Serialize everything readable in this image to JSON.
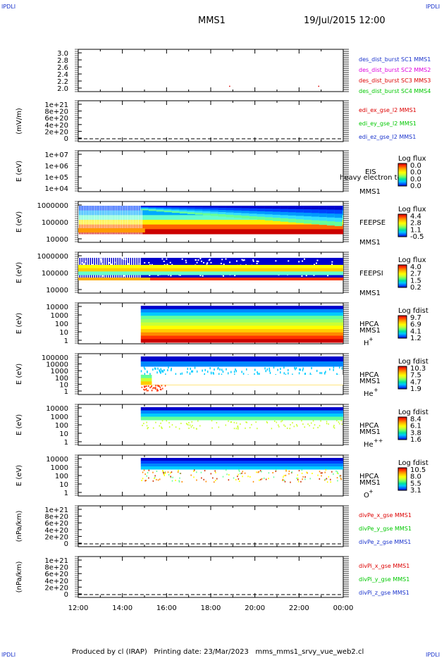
{
  "corner_label": "IPDLI",
  "header": {
    "title": "MMS1",
    "date": "19/Jul/2015 12:00"
  },
  "footer": {
    "produced": "Produced by cl (IRAP)",
    "printing_date": "Printing date: 23/Mar/2023",
    "script": "mms_mms1_srvy_vue_web2.cl"
  },
  "colors": {
    "mms1": "#1a33cc",
    "mms2": "#dd00dd",
    "mms3": "#dd0000",
    "mms4": "#00c800",
    "red": "#dd0000",
    "green": "#00c800",
    "blue": "#1a33cc"
  },
  "x_axis": {
    "ticks": [
      "12:00",
      "14:00",
      "16:00",
      "18:00",
      "20:00",
      "22:00",
      "00:00"
    ]
  },
  "chart_data": [
    {
      "id": "des",
      "type": "scatter",
      "y_ticks": [
        "3.0",
        "2.8",
        "2.6",
        "2.4",
        "2.2",
        "2.0"
      ],
      "ylim": [
        1.95,
        3.05
      ],
      "series": [
        {
          "name": "des_dist_burst SC1 MMS1",
          "color": "#1a33cc",
          "points": []
        },
        {
          "name": "des_dist_burst SC2 MMS2",
          "color": "#dd00dd",
          "points": []
        },
        {
          "name": "des_dist_burst SC3 MMS3",
          "color": "#dd0000",
          "points": [
            {
              "t": "18:50",
              "y": 2.0
            },
            {
              "t": "22:52",
              "y": 2.0
            }
          ]
        },
        {
          "name": "des_dist_burst SC4 MMS4",
          "color": "#00c800",
          "points": []
        }
      ]
    },
    {
      "id": "edi",
      "type": "line",
      "ylabel": "(mV/m)",
      "y_ticks": [
        "1e+21",
        "8e+20",
        "6e+20",
        "4e+20",
        "2e+20",
        "0"
      ],
      "series": [
        {
          "name": "edi_ex_gse_l2 MMS1",
          "color": "#dd0000"
        },
        {
          "name": "edi_ey_gse_l2 MMS1",
          "color": "#00c800"
        },
        {
          "name": "edi_ez_gse_l2 MMS1",
          "color": "#1a33cc"
        }
      ]
    },
    {
      "id": "eis",
      "type": "heatmap",
      "ylabel": "E (eV)",
      "y_ticks": [
        "1e+07",
        "1e+06",
        "1e+05",
        "1e+04"
      ],
      "instrument": "EIS",
      "subtitle": "heavy electron tof",
      "spacecraft": "MMS1",
      "colorbar": {
        "title": "Log flux",
        "labels": [
          "0.0",
          "0.0",
          "0.0",
          "0.0"
        ]
      }
    },
    {
      "id": "feepse",
      "type": "heatmap",
      "ylabel": "E (eV)",
      "y_ticks": [
        "1000000",
        "100000",
        "10000"
      ],
      "instrument": "FEEPSE",
      "spacecraft": "MMS1",
      "colorbar": {
        "title": "Log flux",
        "labels": [
          "4.4",
          "2.8",
          "1.1",
          "-0.5"
        ]
      }
    },
    {
      "id": "feepsi",
      "type": "heatmap",
      "ylabel": "E (eV)",
      "y_ticks": [
        "1000000",
        "100000",
        "10000"
      ],
      "instrument": "FEEPSI",
      "spacecraft": "MMS1",
      "colorbar": {
        "title": "Log flux",
        "labels": [
          "4.0",
          "2.7",
          "1.5",
          "0.2"
        ]
      }
    },
    {
      "id": "hpca_h",
      "type": "heatmap",
      "ylabel": "E (eV)",
      "y_ticks": [
        "10000",
        "1000",
        "100",
        "10",
        "1"
      ],
      "instrument": "HPCA",
      "spacecraft": "MMS1",
      "species": "H",
      "species_charge": "+",
      "colorbar": {
        "title": "Log fdist",
        "labels": [
          "9.7",
          "6.9",
          "4.1",
          "1.2"
        ]
      }
    },
    {
      "id": "hpca_he1",
      "type": "heatmap",
      "ylabel": "E (eV)",
      "y_ticks": [
        "100000",
        "10000",
        "1000",
        "100",
        "10",
        "1"
      ],
      "instrument": "HPCA",
      "spacecraft": "MMS1",
      "species": "He",
      "species_charge": "+",
      "colorbar": {
        "title": "Log fdist",
        "labels": [
          "10.3",
          "7.5",
          "4.7",
          "1.9"
        ]
      }
    },
    {
      "id": "hpca_he2",
      "type": "heatmap",
      "ylabel": "E (eV)",
      "y_ticks": [
        "10000",
        "1000",
        "100",
        "10",
        "1"
      ],
      "instrument": "HPCA",
      "spacecraft": "MMS1",
      "species": "He",
      "species_charge": "++",
      "colorbar": {
        "title": "Log fdist",
        "labels": [
          "8.4",
          "6.1",
          "3.8",
          "1.6"
        ]
      }
    },
    {
      "id": "hpca_o",
      "type": "heatmap",
      "ylabel": "E (eV)",
      "y_ticks": [
        "10000",
        "1000",
        "100",
        "10",
        "1"
      ],
      "instrument": "HPCA",
      "spacecraft": "MMS1",
      "species": "O",
      "species_charge": "+",
      "colorbar": {
        "title": "Log fdist",
        "labels": [
          "10.5",
          "8.0",
          "5.5",
          "3.1"
        ]
      }
    },
    {
      "id": "divpe",
      "type": "line",
      "ylabel": "(nPa/km)",
      "y_ticks": [
        "1e+21",
        "8e+20",
        "6e+20",
        "4e+20",
        "2e+20",
        "0"
      ],
      "series": [
        {
          "name": "divPe_x_gse MMS1",
          "color": "#dd0000"
        },
        {
          "name": "divPe_y_gse MMS1",
          "color": "#00c800"
        },
        {
          "name": "divPe_z_gse MMS1",
          "color": "#1a33cc"
        }
      ]
    },
    {
      "id": "divpi",
      "type": "line",
      "ylabel": "(nPa/km)",
      "y_ticks": [
        "1e+21",
        "8e+20",
        "6e+20",
        "4e+20",
        "2e+20",
        "0"
      ],
      "series": [
        {
          "name": "divPi_x_gse MMS1",
          "color": "#dd0000"
        },
        {
          "name": "divPi_y_gse MMS1",
          "color": "#00c800"
        },
        {
          "name": "divPi_z_gse MMS1",
          "color": "#1a33cc"
        }
      ]
    }
  ]
}
